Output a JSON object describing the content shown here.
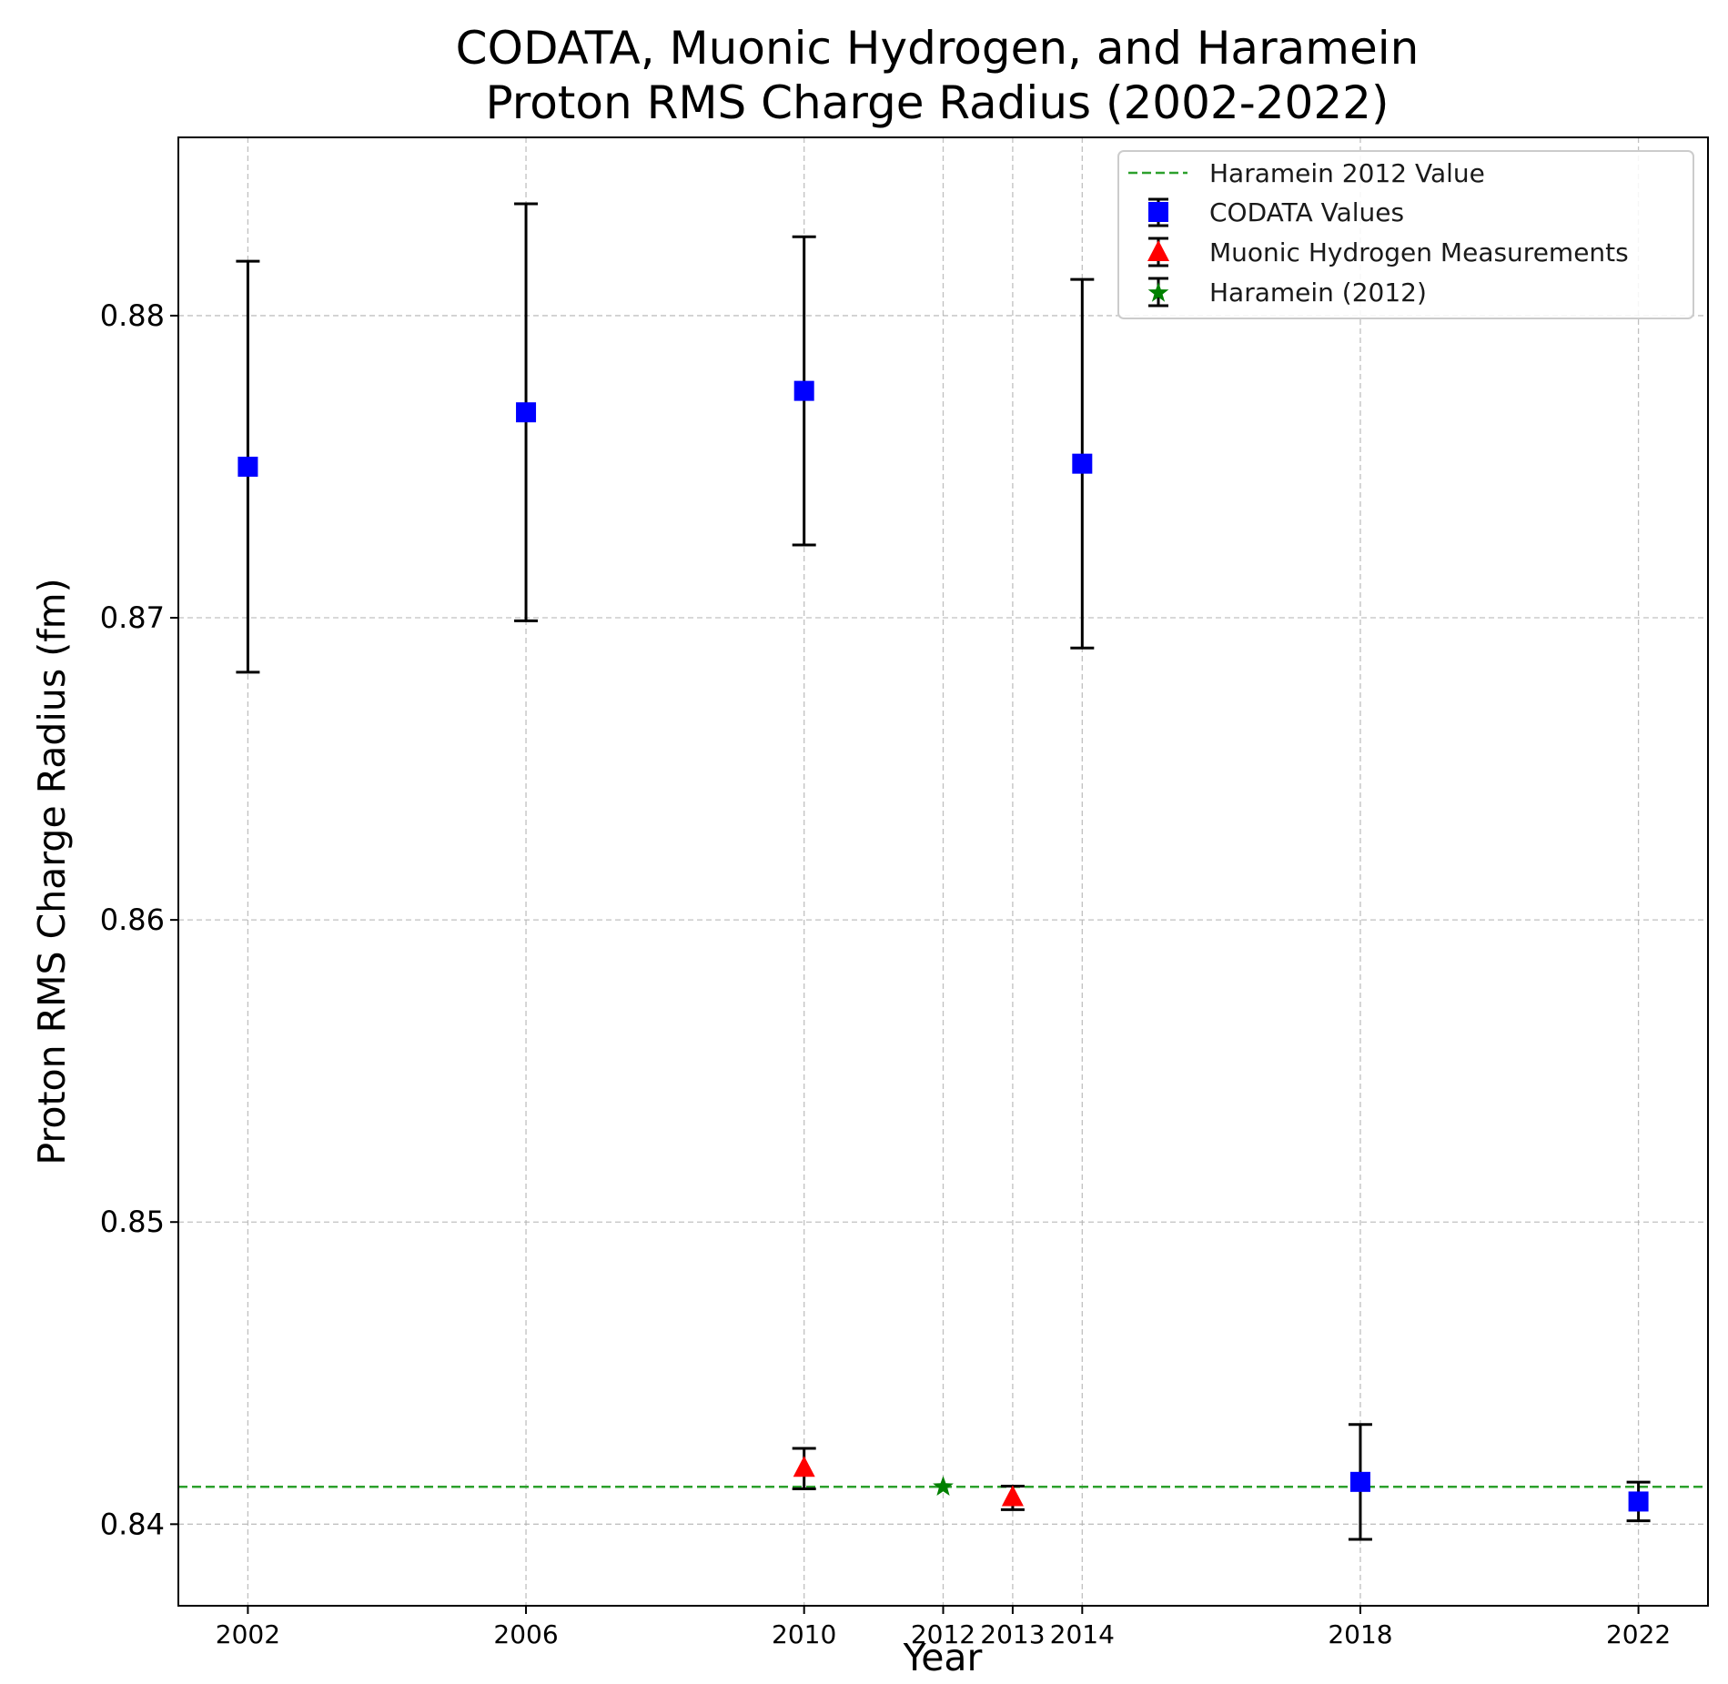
{
  "chart_data": {
    "type": "scatter",
    "title_lines": [
      "CODATA, Muonic Hydrogen, and Haramein",
      "Proton RMS Charge Radius (2002-2022)"
    ],
    "xlabel": "Year",
    "ylabel": "Proton RMS Charge Radius (fm)",
    "xlim": [
      2001.0,
      2023.0
    ],
    "ylim": [
      0.8373,
      0.8859
    ],
    "x_ticks": [
      2002,
      2006,
      2010,
      2012,
      2013,
      2014,
      2018,
      2022
    ],
    "x_tick_labels": [
      "2002",
      "2006",
      "2010",
      "2012",
      "2013",
      "2014",
      "2018",
      "2022"
    ],
    "y_ticks": [
      0.84,
      0.85,
      0.86,
      0.87,
      0.88
    ],
    "y_tick_labels": [
      "0.84",
      "0.85",
      "0.86",
      "0.87",
      "0.88"
    ],
    "grid": true,
    "legend_position": "top-right",
    "series": [
      {
        "name": "CODATA Values",
        "marker": "square",
        "color": "#0000ff",
        "x": [
          2002,
          2006,
          2010,
          2014,
          2018,
          2022
        ],
        "y": [
          0.875,
          0.8768,
          0.87751,
          0.8751,
          0.8414,
          0.84075
        ],
        "err": [
          0.0068,
          0.0069,
          0.0051,
          0.0061,
          0.0019,
          0.00064
        ]
      },
      {
        "name": "Muonic Hydrogen Measurements",
        "marker": "triangle",
        "color": "#ff0000",
        "x": [
          2010,
          2013
        ],
        "y": [
          0.84184,
          0.84087
        ],
        "err": [
          0.00067,
          0.00039
        ]
      },
      {
        "name": "Haramein (2012)",
        "marker": "star",
        "color": "#008000",
        "x": [
          2012
        ],
        "y": [
          0.841236
        ],
        "err": [
          0.0
        ]
      }
    ],
    "reference_lines": [
      {
        "name": "Haramein 2012 Value",
        "y": 0.841236,
        "color": "#2ca02c",
        "style": "dashed"
      }
    ],
    "errorbar_color": "#000000"
  }
}
